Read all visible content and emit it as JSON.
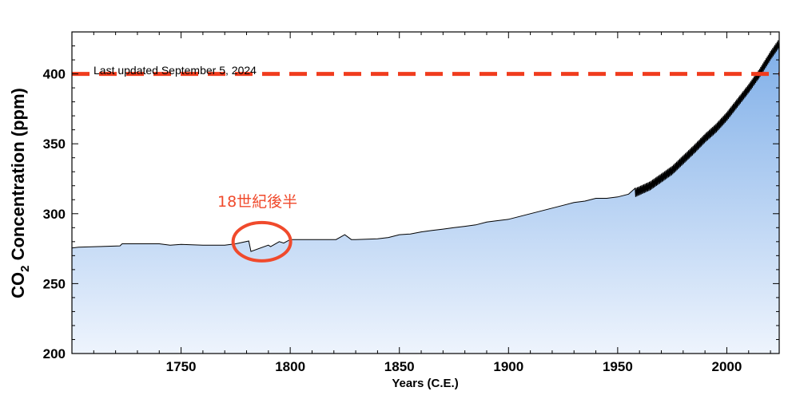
{
  "chart_data": {
    "type": "area",
    "xlabel": "Years (C.E.)",
    "ylabel": {
      "prefix": "CO",
      "subscript": "2",
      "suffix": " Concentration (ppm)"
    },
    "xlim": [
      1700,
      2024
    ],
    "ylim": [
      200,
      430
    ],
    "x_ticks": [
      1750,
      1800,
      1850,
      1900,
      1950,
      2000
    ],
    "y_ticks": [
      200,
      250,
      300,
      350,
      400
    ],
    "reference_line": {
      "y": 400,
      "color": "#f03c1e",
      "style": "dashed",
      "label": "Last updated September 5, 2024"
    },
    "annotation": {
      "text": "18世紀後半",
      "color": "#f04a2c",
      "circle_center": [
        1787,
        280
      ]
    },
    "fill_gradient": [
      "#7eaee8",
      "#eef4fd"
    ],
    "series": [
      {
        "x": [
          1700,
          1703,
          1712,
          1722,
          1723,
          1740,
          1745,
          1750,
          1760,
          1770,
          1775,
          1781,
          1782,
          1790,
          1791,
          1795,
          1797,
          1800,
          1810,
          1821,
          1825,
          1828,
          1830,
          1840,
          1845,
          1850,
          1855,
          1860,
          1865,
          1870,
          1875,
          1880,
          1885,
          1890,
          1895,
          1900,
          1905,
          1910,
          1915,
          1920,
          1925,
          1930,
          1935,
          1940,
          1945,
          1950,
          1955,
          1958,
          1965,
          1970,
          1975,
          1980,
          1985,
          1990,
          1995,
          2000,
          2005,
          2010,
          2015,
          2020,
          2024
        ],
        "y": [
          275.5,
          276,
          276.5,
          277,
          278.5,
          278.5,
          277.5,
          278,
          277.5,
          277.5,
          278.5,
          280.5,
          273,
          277.5,
          276.5,
          280,
          279,
          281.5,
          281.5,
          281.5,
          285,
          281.5,
          281.5,
          282,
          283,
          285,
          285.5,
          287,
          288,
          289,
          290,
          291,
          292,
          294,
          295,
          296,
          298,
          300,
          302,
          304,
          306,
          308,
          309,
          311,
          311,
          312,
          314,
          315,
          320,
          325.5,
          331,
          338.5,
          346,
          354,
          361,
          369.5,
          379.5,
          389.5,
          400.5,
          413,
          422
        ]
      }
    ]
  }
}
